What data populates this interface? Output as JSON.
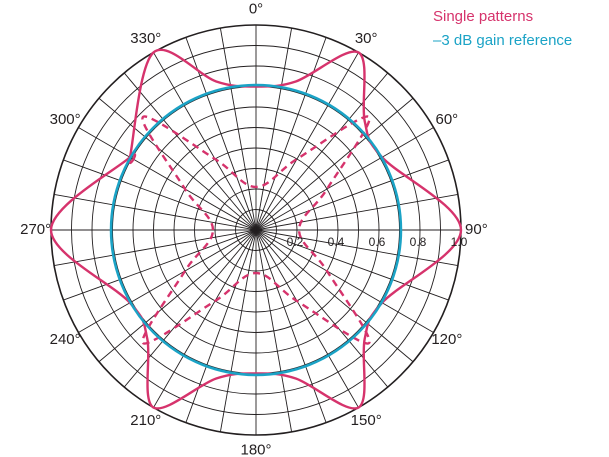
{
  "chart_data": {
    "type": "polar-line",
    "radial_range": [
      0,
      1.0
    ],
    "radial_ticks": [
      "0.2",
      "0.4",
      "0.6",
      "0.8",
      "1.0"
    ],
    "angle_step_deg": 10,
    "angle_labels": [
      "0°",
      "30°",
      "60°",
      "90°",
      "120°",
      "150°",
      "180°",
      "210°",
      "240°",
      "270°",
      "300°",
      "330°"
    ],
    "legend_position": "top-right",
    "legend": [
      {
        "label": "Single patterns",
        "color": "#d6336c"
      },
      {
        "label": "–3 dB gain reference",
        "color": "#1ba3c6"
      }
    ],
    "series": [
      {
        "name": "Single patterns",
        "style": "solid",
        "color": "#d6336c",
        "angles": [
          -60,
          -30,
          -15,
          0,
          15,
          30,
          45,
          60,
          90,
          120,
          135,
          150,
          165,
          180,
          195,
          210,
          225,
          240,
          270,
          300
        ],
        "radii": [
          0.71,
          1.0,
          0.75,
          0.7,
          0.75,
          1.0,
          0.75,
          0.71,
          1.0,
          0.71,
          0.75,
          1.0,
          0.75,
          0.7,
          0.75,
          1.0,
          0.75,
          0.71,
          1.0,
          0.71
        ]
      },
      {
        "name": "Single patterns (dashed)",
        "style": "dashed",
        "color": "#d6336c",
        "angles": [
          -90,
          -60,
          -45,
          -30,
          0,
          30,
          45,
          60,
          90,
          120,
          135,
          150,
          180,
          210,
          225,
          240
        ],
        "radii": [
          0.21,
          0.4,
          0.78,
          0.4,
          0.21,
          0.4,
          0.78,
          0.4,
          0.21,
          0.4,
          0.78,
          0.4,
          0.21,
          0.4,
          0.78,
          0.4
        ]
      },
      {
        "name": "–3 dB gain reference",
        "style": "solid",
        "color": "#1ba3c6",
        "angles": [
          0,
          90,
          180,
          270
        ],
        "radii": [
          0.707,
          0.707,
          0.707,
          0.707
        ]
      }
    ]
  }
}
